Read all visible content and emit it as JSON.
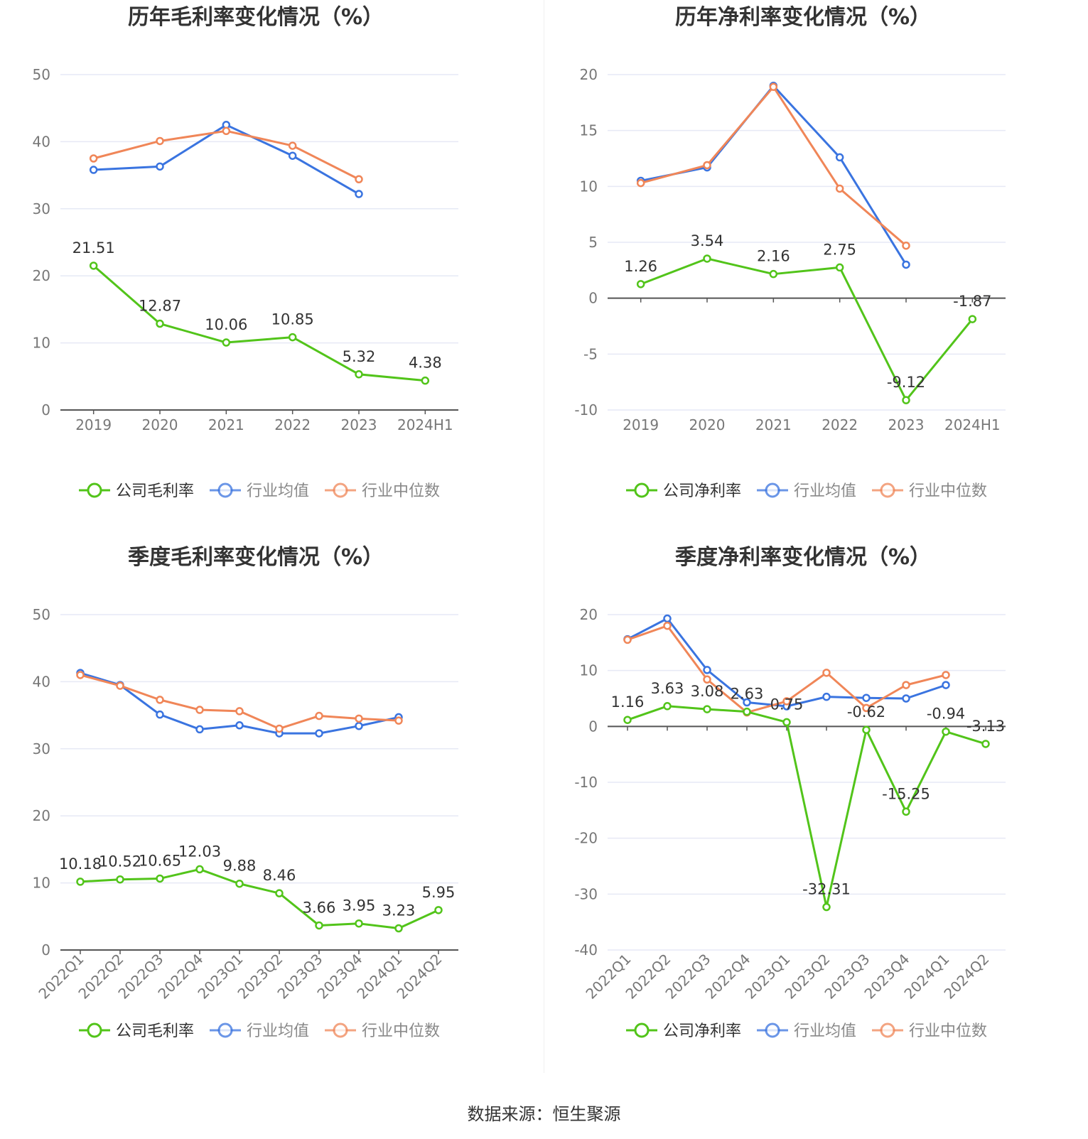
{
  "colors": {
    "company": "#52c41a",
    "industry_avg": "#3a74e0",
    "industry_median": "#f08658",
    "axis": "#555555",
    "grid": "#e6e9f5",
    "text": "#333333",
    "tick": "#777777"
  },
  "source_label": "数据来源：恒生聚源",
  "chart_data": [
    {
      "type": "line",
      "title": "历年毛利率变化情况（%）",
      "categories": [
        "2019",
        "2020",
        "2021",
        "2022",
        "2023",
        "2024H1"
      ],
      "ylim": [
        0,
        50
      ],
      "yticks": [
        0,
        10,
        20,
        30,
        40,
        50
      ],
      "rotate_labels": false,
      "grid": true,
      "legend_position": "bottom",
      "series": [
        {
          "name": "公司毛利率",
          "key": "company",
          "values": [
            21.51,
            12.87,
            10.06,
            10.85,
            5.32,
            4.38
          ],
          "labels": [
            "21.51",
            "12.87",
            "10.06",
            "10.85",
            "5.32",
            "4.38"
          ]
        },
        {
          "name": "行业均值",
          "key": "industry_avg",
          "values": [
            35.8,
            36.3,
            42.5,
            37.9,
            32.2,
            null
          ]
        },
        {
          "name": "行业中位数",
          "key": "industry_median",
          "values": [
            37.5,
            40.1,
            41.6,
            39.4,
            34.4,
            null
          ]
        }
      ]
    },
    {
      "type": "line",
      "title": "历年净利率变化情况（%）",
      "categories": [
        "2019",
        "2020",
        "2021",
        "2022",
        "2023",
        "2024H1"
      ],
      "ylim": [
        -10,
        20
      ],
      "yticks": [
        -10,
        -5,
        0,
        5,
        10,
        15,
        20
      ],
      "rotate_labels": false,
      "grid": true,
      "legend_position": "bottom",
      "series": [
        {
          "name": "公司净利率",
          "key": "company",
          "values": [
            1.26,
            3.54,
            2.16,
            2.75,
            -9.12,
            -1.87
          ],
          "labels": [
            "1.26",
            "3.54",
            "2.16",
            "2.75",
            "-9.12",
            "-1.87"
          ]
        },
        {
          "name": "行业均值",
          "key": "industry_avg",
          "values": [
            10.5,
            11.7,
            19.0,
            12.6,
            3.0,
            null
          ]
        },
        {
          "name": "行业中位数",
          "key": "industry_median",
          "values": [
            10.3,
            11.9,
            18.9,
            9.8,
            4.7,
            null
          ]
        }
      ]
    },
    {
      "type": "line",
      "title": "季度毛利率变化情况（%）",
      "categories": [
        "2022Q1",
        "2022Q2",
        "2022Q3",
        "2022Q4",
        "2023Q1",
        "2023Q2",
        "2023Q3",
        "2023Q4",
        "2024Q1",
        "2024Q2"
      ],
      "ylim": [
        0,
        50
      ],
      "yticks": [
        0,
        10,
        20,
        30,
        40,
        50
      ],
      "rotate_labels": true,
      "grid": true,
      "legend_position": "bottom",
      "series": [
        {
          "name": "公司毛利率",
          "key": "company",
          "values": [
            10.18,
            10.52,
            10.65,
            12.03,
            9.88,
            8.46,
            3.66,
            3.95,
            3.23,
            5.95
          ],
          "labels": [
            "10.18",
            "10.52",
            "10.65",
            "12.03",
            "9.88",
            "8.46",
            "3.66",
            "3.95",
            "3.23",
            "5.95"
          ]
        },
        {
          "name": "行业均值",
          "key": "industry_avg",
          "values": [
            41.3,
            39.5,
            35.1,
            32.9,
            33.5,
            32.3,
            32.3,
            33.4,
            34.7,
            null
          ]
        },
        {
          "name": "行业中位数",
          "key": "industry_median",
          "values": [
            41.0,
            39.4,
            37.3,
            35.8,
            35.6,
            33.0,
            34.9,
            34.5,
            34.2,
            null
          ]
        }
      ]
    },
    {
      "type": "line",
      "title": "季度净利率变化情况（%）",
      "categories": [
        "2022Q1",
        "2022Q2",
        "2022Q3",
        "2022Q4",
        "2023Q1",
        "2023Q2",
        "2023Q3",
        "2023Q4",
        "2024Q1",
        "2024Q2"
      ],
      "ylim": [
        -40,
        20
      ],
      "yticks": [
        -40,
        -30,
        -20,
        -10,
        0,
        10,
        20
      ],
      "rotate_labels": true,
      "grid": true,
      "legend_position": "bottom",
      "series": [
        {
          "name": "公司净利率",
          "key": "company",
          "values": [
            1.16,
            3.63,
            3.08,
            2.63,
            0.75,
            -32.31,
            -0.62,
            -15.25,
            -0.94,
            -3.13
          ],
          "labels": [
            "1.16",
            "3.63",
            "3.08",
            "2.63",
            "0.75",
            "-32.31",
            "-0.62",
            "-15.25",
            "-0.94",
            "-3.13"
          ]
        },
        {
          "name": "行业均值",
          "key": "industry_avg",
          "values": [
            15.6,
            19.3,
            10.1,
            4.3,
            3.6,
            5.3,
            5.1,
            5.0,
            7.4,
            null
          ]
        },
        {
          "name": "行业中位数",
          "key": "industry_median",
          "values": [
            15.5,
            18.0,
            8.4,
            2.5,
            4.5,
            9.6,
            3.3,
            7.4,
            9.2,
            null
          ]
        }
      ]
    }
  ]
}
